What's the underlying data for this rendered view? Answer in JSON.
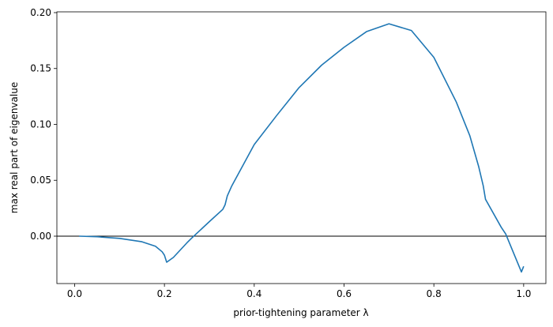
{
  "chart_data": {
    "type": "line",
    "xlabel": "prior-tightening parameter λ",
    "ylabel": "max real part of eigenvalue",
    "x": [
      0.01,
      0.05,
      0.1,
      0.15,
      0.18,
      0.195,
      0.2,
      0.205,
      0.22,
      0.25,
      0.26,
      0.3,
      0.33,
      0.335,
      0.34,
      0.35,
      0.4,
      0.45,
      0.5,
      0.55,
      0.6,
      0.65,
      0.7,
      0.75,
      0.8,
      0.85,
      0.88,
      0.9,
      0.91,
      0.915,
      0.95,
      0.96,
      0.995,
      1.0
    ],
    "series": [
      {
        "color": "#1f77b4",
        "values": [
          0,
          -0.0005,
          -0.002,
          -0.005,
          -0.009,
          -0.014,
          -0.017,
          -0.0233,
          -0.019,
          -0.006,
          -0.002,
          0.013,
          0.024,
          0.028,
          0.036,
          0.045,
          0.082,
          0.108,
          0.133,
          0.153,
          0.169,
          0.183,
          0.19,
          0.184,
          0.16,
          0.12,
          0.09,
          0.062,
          0.045,
          0.033,
          0.008,
          0.002,
          -0.032,
          -0.027
        ]
      }
    ],
    "hlines": [
      0
    ],
    "xlim": [
      -0.0395,
      1.0495
    ],
    "ylim": [
      -0.0424,
      0.2007
    ],
    "xticks": [
      {
        "value": 0,
        "label": "0.0"
      },
      0.2,
      0.4,
      0.6,
      0.8,
      {
        "value": 1,
        "label": "1.0"
      }
    ],
    "yticks": [
      {
        "value": 0,
        "label": "0.00"
      },
      {
        "value": 0.05,
        "label": "0.05"
      },
      {
        "value": 0.1,
        "label": "0.10"
      },
      {
        "value": 0.15,
        "label": "0.15"
      },
      {
        "value": 0.2,
        "label": "0.20"
      }
    ],
    "grid": false
  }
}
